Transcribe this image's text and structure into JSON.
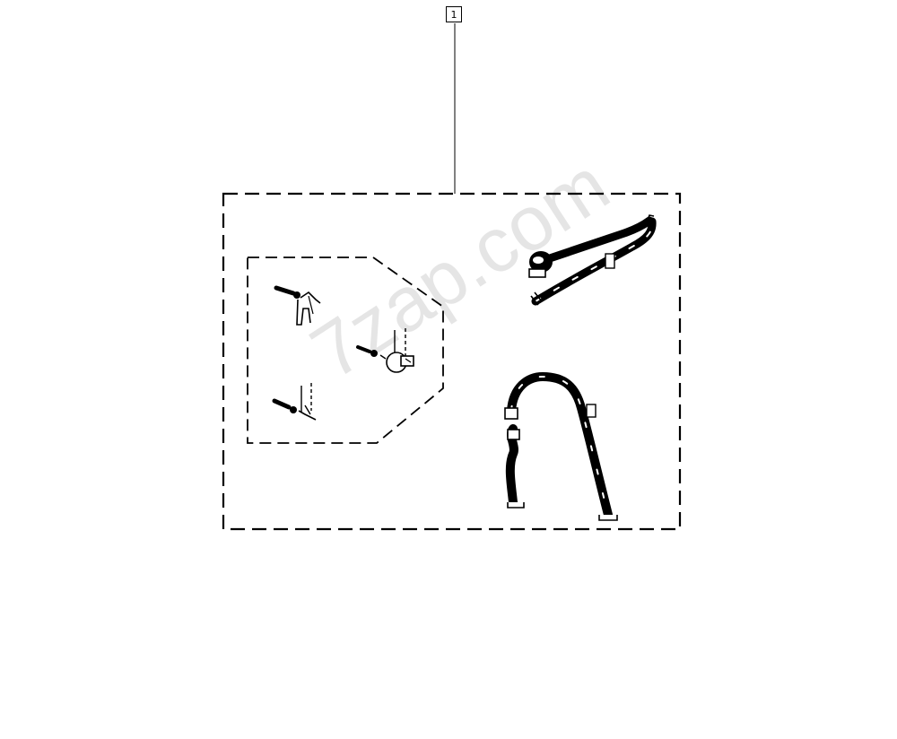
{
  "diagram": {
    "callouts": [
      {
        "number": "1",
        "target": "kit-outline"
      }
    ],
    "watermark": "7zap.com",
    "colors": {
      "line": "#000000",
      "watermark": "#d9d9d9",
      "background": "#ffffff"
    }
  }
}
